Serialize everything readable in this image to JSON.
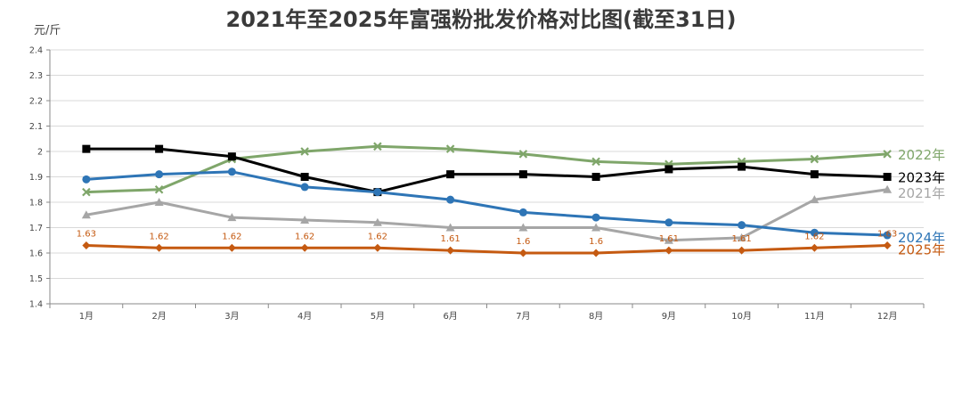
{
  "chart_data": {
    "type": "line",
    "title": "2021年至2025年富强粉批发价格对比图(截至31日)",
    "ylabel": "元/斤",
    "xlabel": "",
    "ylim": [
      1.4,
      2.4
    ],
    "yticks": [
      "1.4",
      "1.5",
      "1.6",
      "1.7",
      "1.8",
      "1.9",
      "2",
      "2.1",
      "2.2",
      "2.3",
      "2.4"
    ],
    "categories": [
      "1月",
      "2月",
      "3月",
      "4月",
      "5月",
      "6月",
      "7月",
      "8月",
      "9月",
      "10月",
      "11月",
      "12月"
    ],
    "grid": true,
    "legend": "right",
    "series": [
      {
        "name": "2021年",
        "color": "#a6a6a6",
        "marker": "triangle",
        "values": [
          1.75,
          1.8,
          1.74,
          1.73,
          1.72,
          1.7,
          1.7,
          1.7,
          1.65,
          1.66,
          1.81,
          1.85
        ]
      },
      {
        "name": "2022年",
        "color": "#7fa66a",
        "marker": "x",
        "values": [
          1.84,
          1.85,
          1.97,
          2.0,
          2.02,
          2.01,
          1.99,
          1.96,
          1.95,
          1.96,
          1.97,
          1.99
        ]
      },
      {
        "name": "2023年",
        "color": "#000000",
        "marker": "square",
        "values": [
          2.01,
          2.01,
          1.98,
          1.9,
          1.84,
          1.91,
          1.91,
          1.9,
          1.93,
          1.94,
          1.91,
          1.9
        ]
      },
      {
        "name": "2024年",
        "color": "#2e75b6",
        "marker": "circle",
        "values": [
          1.89,
          1.91,
          1.92,
          1.86,
          1.84,
          1.81,
          1.76,
          1.74,
          1.72,
          1.71,
          1.68,
          1.67
        ]
      },
      {
        "name": "2025年",
        "color": "#c55a11",
        "marker": "diamond",
        "values": [
          1.63,
          1.62,
          1.62,
          1.62,
          1.62,
          1.61,
          1.6,
          1.6,
          1.61,
          1.61,
          1.62,
          1.63
        ],
        "data_labels": [
          "1.63",
          "1.62",
          "1.62",
          "1.62",
          "1.62",
          "1.61",
          "1.6",
          "1.6",
          "1.61",
          "1.61",
          "1.62",
          "1.63"
        ]
      }
    ]
  }
}
